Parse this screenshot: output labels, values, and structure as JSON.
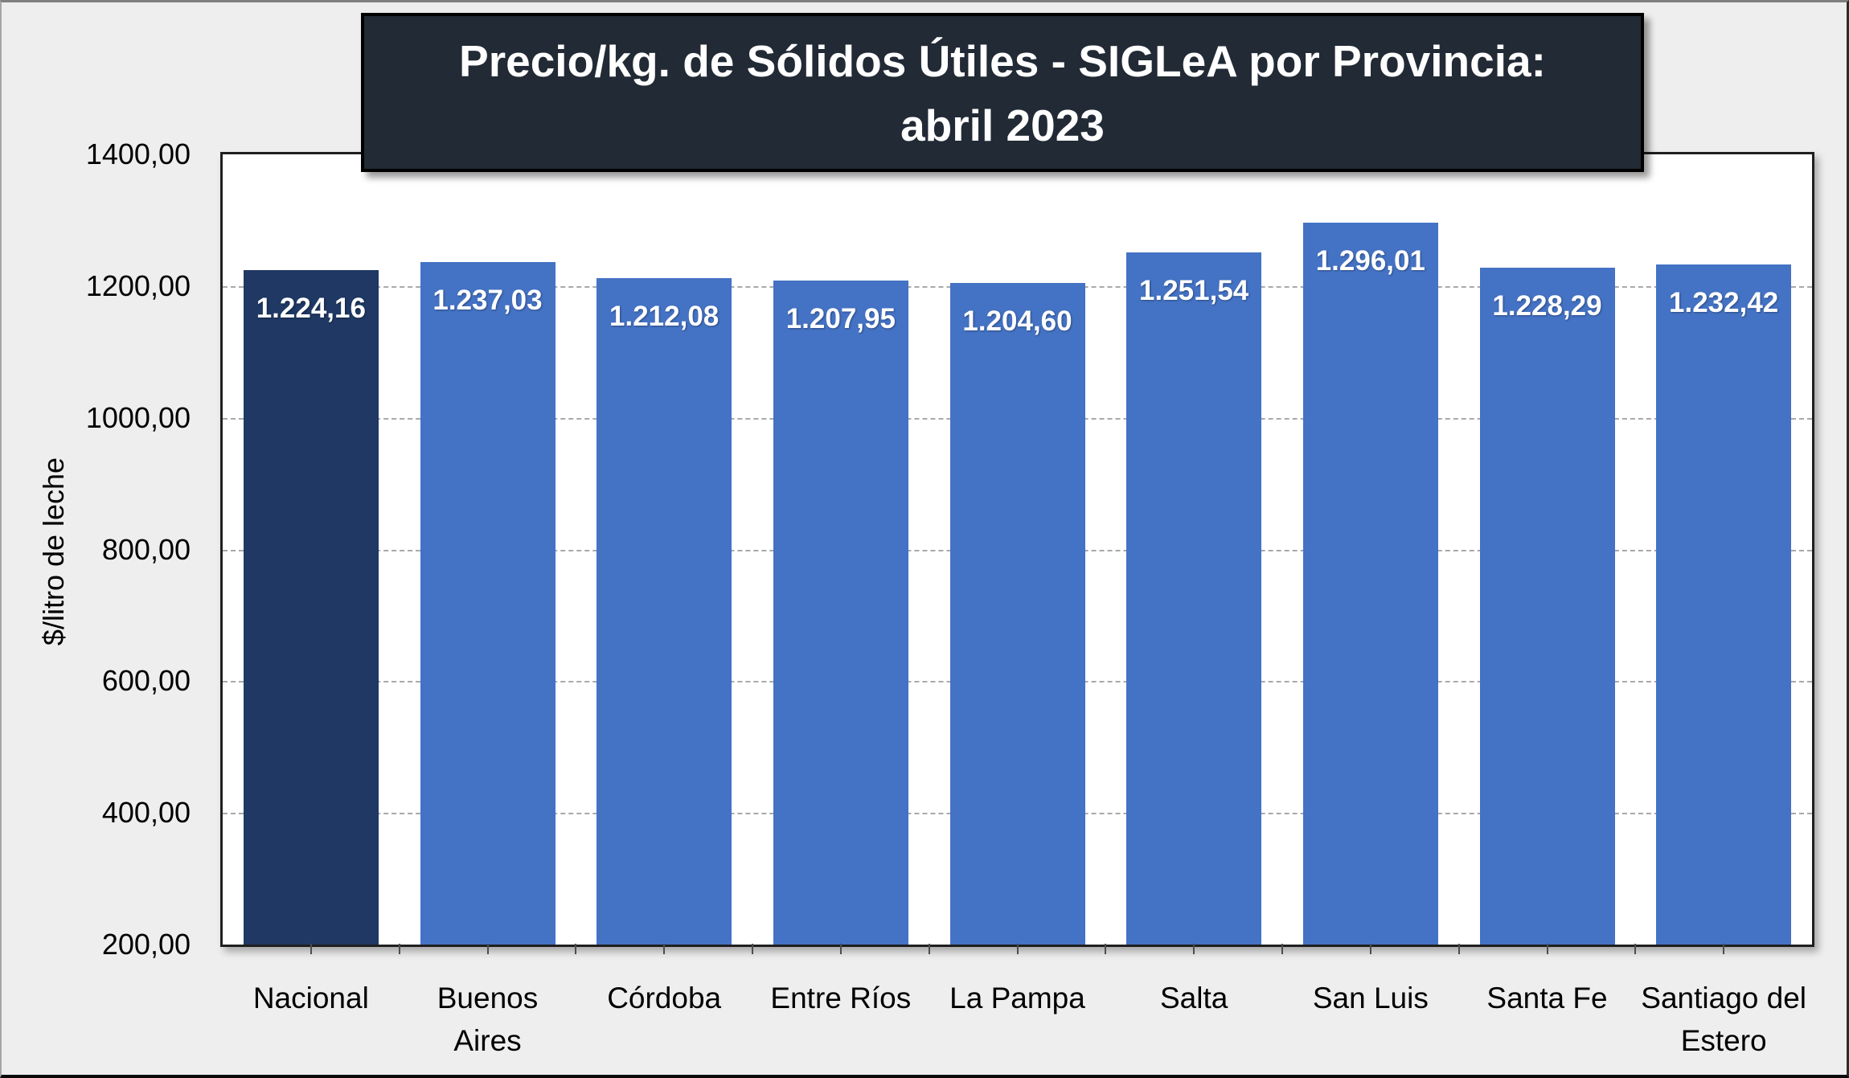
{
  "chart_data": {
    "type": "bar",
    "title": "Precio/kg. de Sólidos Útiles - SIGLeA por Provincia: abril 2023",
    "title_lines": [
      "Precio/kg. de Sólidos Útiles - SIGLeA por Provincia:",
      "abril 2023"
    ],
    "ylabel": "$/litro de leche",
    "xlabel": "",
    "categories": [
      "Nacional",
      "Buenos Aires",
      "Córdoba",
      "Entre Ríos",
      "La Pampa",
      "Salta",
      "San Luis",
      "Santa Fe",
      "Santiago del Estero"
    ],
    "values": [
      1224.16,
      1237.03,
      1212.08,
      1207.95,
      1204.6,
      1251.54,
      1296.01,
      1228.29,
      1232.42
    ],
    "value_labels": [
      "1.224,16",
      "1.237,03",
      "1.212,08",
      "1.207,95",
      "1.204,60",
      "1.251,54",
      "1.296,01",
      "1.228,29",
      "1.232,42"
    ],
    "ylim": [
      200,
      1400
    ],
    "ytick_step": 200,
    "ytick_labels": [
      "200,00",
      "400,00",
      "600,00",
      "800,00",
      "1000,00",
      "1200,00",
      "1400,00"
    ],
    "grid": "horizontal-dashed",
    "legend": "none",
    "highlight_index": 0,
    "colors": {
      "highlight_bar": "#1f3864",
      "default_bar": "#4472c4",
      "title_bg": "#212a35",
      "title_text": "#ffffff",
      "plot_bg": "#ffffff",
      "page_bg": "#efeeee",
      "gridline": "#a9a9a9",
      "plot_border": "#1f1f1f",
      "bar_label_text": "#ffffff"
    }
  }
}
